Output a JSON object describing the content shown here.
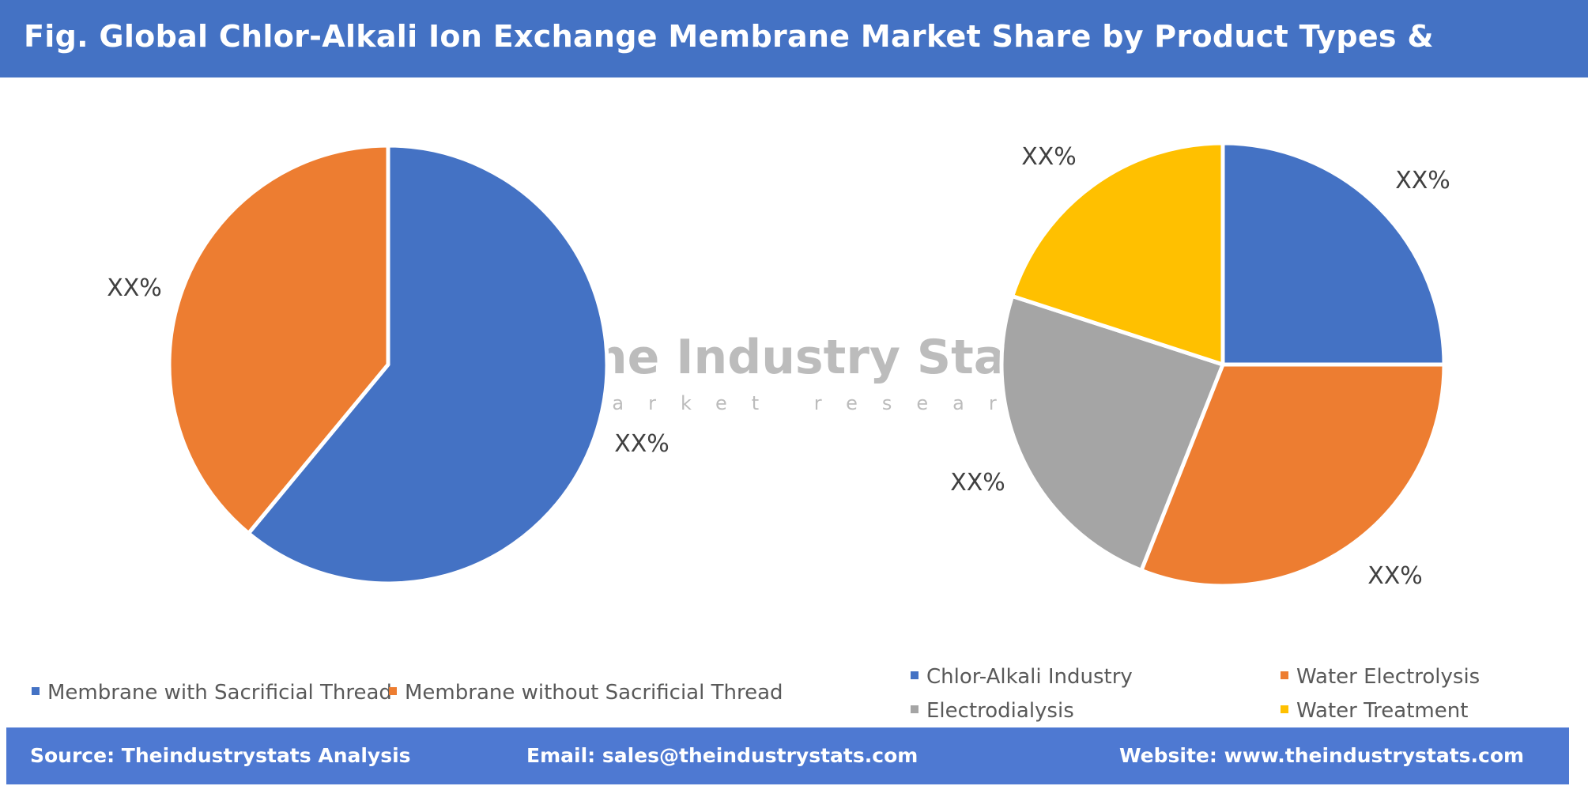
{
  "title": "Fig. Global Chlor-Alkali Ion Exchange Membrane Market Share by Product Types & Application",
  "watermark": {
    "name": "The Industry Stats",
    "tagline": "market research"
  },
  "colors": {
    "blue": "#4472c4",
    "orange": "#ed7d31",
    "gray": "#a5a5a5",
    "yellow": "#ffc000",
    "header": "#4472c4",
    "footer": "#4e79d2"
  },
  "chart_data": [
    {
      "type": "pie",
      "title": "",
      "slices": [
        {
          "name": "Membrane with Sacrificial Thread",
          "value": 61,
          "label": "XX%",
          "color": "#4472c4"
        },
        {
          "name": "Membrane without Sacrificial Thread",
          "value": 39,
          "label": "XX%",
          "color": "#ed7d31"
        }
      ],
      "legend_position": "bottom"
    },
    {
      "type": "pie",
      "title": "",
      "slices": [
        {
          "name": "Chlor-Alkali Industry",
          "value": 25,
          "label": "XX%",
          "color": "#4472c4"
        },
        {
          "name": "Water Electrolysis",
          "value": 31,
          "label": "XX%",
          "color": "#ed7d31"
        },
        {
          "name": "Electrodialysis",
          "value": 24,
          "label": "XX%",
          "color": "#a5a5a5"
        },
        {
          "name": "Water Treatment",
          "value": 20,
          "label": "XX%",
          "color": "#ffc000"
        }
      ],
      "legend_position": "bottom"
    }
  ],
  "legend": {
    "left": [
      "Membrane with Sacrificial Thread",
      "Membrane without Sacrificial Thread"
    ],
    "right": [
      "Chlor-Alkali Industry",
      "Water Electrolysis",
      "Electrodialysis",
      "Water Treatment"
    ]
  },
  "footer": {
    "source": "Source: Theindustrystats Analysis",
    "email": "Email: sales@theindustrystats.com",
    "website": "Website: www.theindustrystats.com"
  }
}
